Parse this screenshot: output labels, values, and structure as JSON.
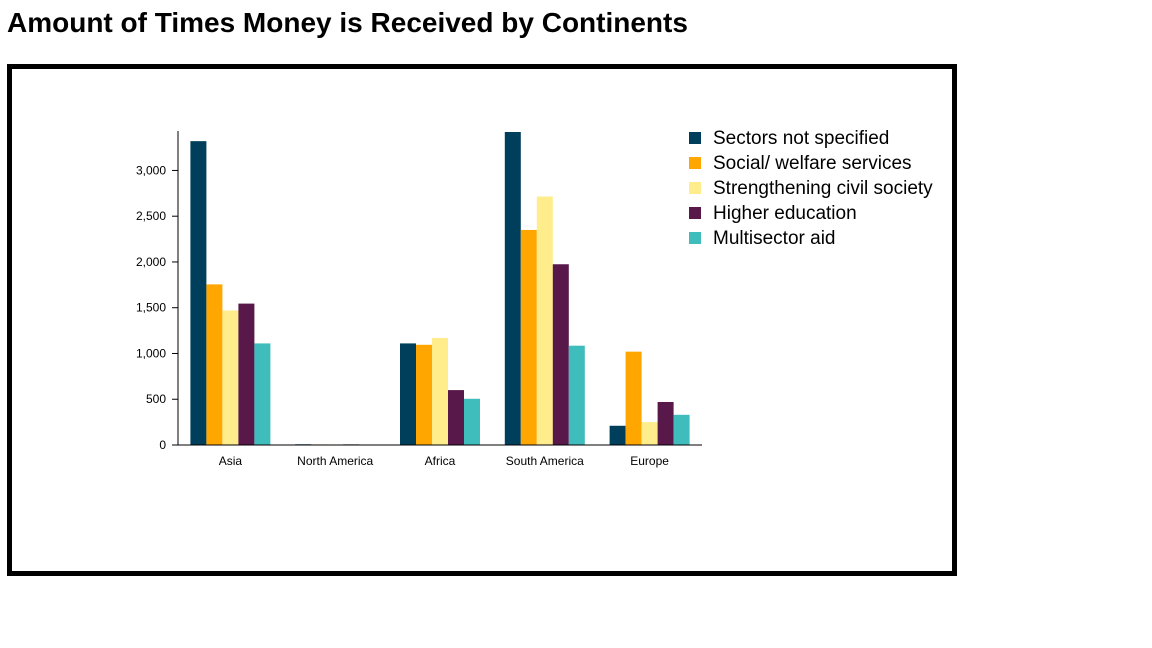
{
  "page": {
    "title": "Amount of Times Money is Received by Continents"
  },
  "chart_data": {
    "type": "bar",
    "title": "Amount of Times Money is Received by Continents",
    "xlabel": "",
    "ylabel": "",
    "categories": [
      "Asia",
      "North America",
      "Africa",
      "South America",
      "Europe"
    ],
    "series": [
      {
        "name": "Sectors not specified",
        "color": "#003f5c",
        "values": [
          3320,
          8,
          1110,
          3420,
          210
        ]
      },
      {
        "name": "Social/ welfare services",
        "color": "#ffa600",
        "values": [
          1755,
          6,
          1095,
          2350,
          1020
        ]
      },
      {
        "name": "Strengthening civil society",
        "color": "#ffec8b",
        "values": [
          1470,
          5,
          1170,
          2715,
          250
        ]
      },
      {
        "name": "Higher education",
        "color": "#58194a",
        "values": [
          1545,
          7,
          600,
          1975,
          470
        ]
      },
      {
        "name": "Multisector aid",
        "color": "#3fbcbc",
        "values": [
          1110,
          4,
          505,
          1085,
          330
        ]
      }
    ],
    "ylim": [
      0,
      3420
    ],
    "yticks": [
      0,
      500,
      1000,
      1500,
      2000,
      2500,
      3000
    ],
    "ytick_labels": [
      "0",
      "500",
      "1,000",
      "1,500",
      "2,000",
      "2,500",
      "3,000"
    ],
    "grid": false,
    "legend_position": "right"
  }
}
